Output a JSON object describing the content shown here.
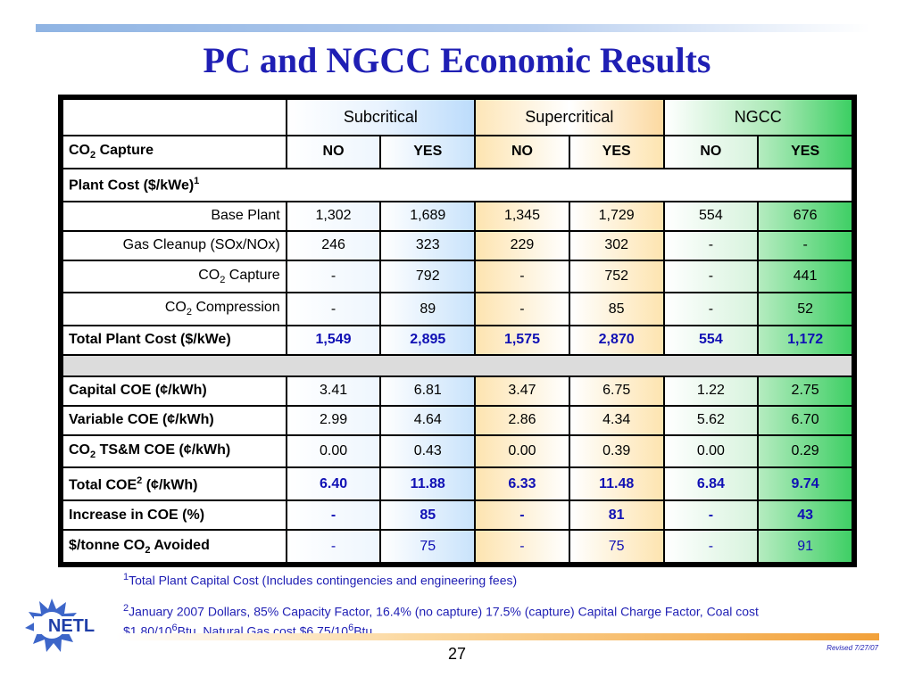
{
  "title": "PC and NGCC Economic Results",
  "header": {
    "groups": [
      "Subcritical",
      "Supercritical",
      "NGCC"
    ]
  },
  "capture_row": {
    "label_main": "CO",
    "label_sub": "2",
    "label_rest": " Capture",
    "values": [
      "NO",
      "YES",
      "NO",
      "YES",
      "NO",
      "YES"
    ]
  },
  "plant_cost_section": {
    "label": "Plant Cost ($/kWe)",
    "label_sup": "1"
  },
  "rows": {
    "base_plant": {
      "label": "Base Plant",
      "values": [
        "1,302",
        "1,689",
        "1,345",
        "1,729",
        "554",
        "676"
      ]
    },
    "gas_cleanup": {
      "label": "Gas Cleanup (SOx/NOx)",
      "values": [
        "246",
        "323",
        "229",
        "302",
        "-",
        "-"
      ]
    },
    "co2_capture": {
      "label_main": "CO",
      "label_sub": "2",
      "label_rest": " Capture",
      "values": [
        "-",
        "792",
        "-",
        "752",
        "-",
        "441"
      ]
    },
    "co2_compression": {
      "label_main": "CO",
      "label_sub": "2",
      "label_rest": " Compression",
      "values": [
        "-",
        "89",
        "-",
        "85",
        "-",
        "52"
      ]
    },
    "total_plant_cost": {
      "label": "Total Plant Cost ($/kWe)",
      "values": [
        "1,549",
        "2,895",
        "1,575",
        "2,870",
        "554",
        "1,172"
      ]
    },
    "capital_coe": {
      "label": "Capital COE (¢/kWh)",
      "values": [
        "3.41",
        "6.81",
        "3.47",
        "6.75",
        "1.22",
        "2.75"
      ]
    },
    "variable_coe": {
      "label": "Variable COE (¢/kWh)",
      "values": [
        "2.99",
        "4.64",
        "2.86",
        "4.34",
        "5.62",
        "6.70"
      ]
    },
    "co2_tsm_coe": {
      "label_main": "CO",
      "label_sub": "2",
      "label_rest": " TS&M COE (¢/kWh)",
      "values": [
        "0.00",
        "0.43",
        "0.00",
        "0.39",
        "0.00",
        "0.29"
      ]
    },
    "total_coe": {
      "label_main": "Total COE",
      "label_sup": "2",
      "label_rest": " (¢/kWh)",
      "values": [
        "6.40",
        "11.88",
        "6.33",
        "11.48",
        "6.84",
        "9.74"
      ]
    },
    "increase_coe": {
      "label": "Increase in COE (%)",
      "values": [
        "-",
        "85",
        "-",
        "81",
        "-",
        "43"
      ]
    },
    "cost_avoided": {
      "label_main": "$/tonne CO",
      "label_sub": "2",
      "label_rest": " Avoided",
      "values": [
        "-",
        "75",
        "-",
        "75",
        "-",
        "91"
      ]
    }
  },
  "footnotes": {
    "fn1_mark": "1",
    "fn1_text": "Total Plant Capital Cost (Includes contingencies and engineering fees)",
    "fn2_mark": "2",
    "fn2_text_a": "January 2007 Dollars, 85% Capacity Factor, 16.4% (no capture) 17.5% (capture) Capital Charge Factor, Coal cost $1.80/10",
    "fn2_exp1": "6",
    "fn2_text_b": "Btu, Natural Gas cost $6.75/10",
    "fn2_exp2": "6",
    "fn2_text_c": "Btu"
  },
  "logo_text": "NETL",
  "page_number": "27",
  "revised": "Revised 7/27/07",
  "colors": {
    "title": "#1f1fb4",
    "highlight_values": "#1010b4",
    "subcritical": "#bcdcfb",
    "supercritical": "#fcd9a0",
    "ngcc": "#3ccf63"
  }
}
